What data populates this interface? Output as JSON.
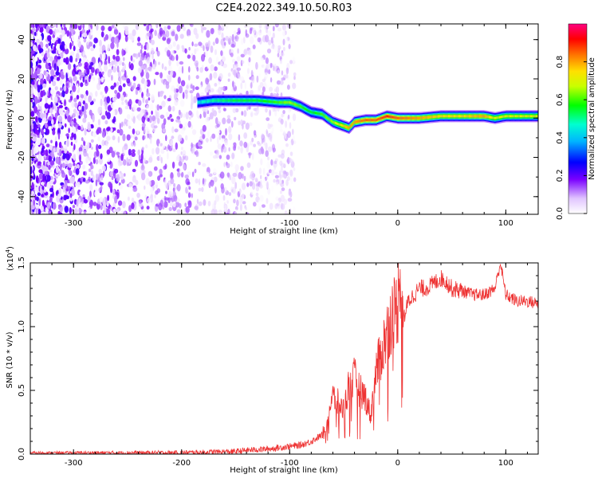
{
  "page_title": "C2E4.2022.349.10.50.R03",
  "chart_data": [
    {
      "type": "heatmap",
      "xlabel": "Height of straight line (km)",
      "ylabel": "Frequency (Hz)",
      "xlim": [
        -340,
        130
      ],
      "ylim": [
        -49,
        48
      ],
      "xticks": [
        -300,
        -200,
        -100,
        0,
        100
      ],
      "yticks": [
        -40,
        -20,
        0,
        20,
        40
      ],
      "xtick_labels": [
        "-300",
        "-200",
        "-100",
        "0",
        "100"
      ],
      "ytick_labels": [
        "-40",
        "-20",
        "0",
        "20",
        "40"
      ],
      "colorbar": {
        "label": "Normalized spectral amplitude",
        "range": [
          0.0,
          1.0
        ],
        "ticks": [
          0.0,
          0.2,
          0.4,
          0.6,
          0.8
        ],
        "tick_labels": [
          "0.0",
          "0.2",
          "0.4",
          "0.6",
          "0.8"
        ],
        "colors": [
          "#ffffff",
          "#e8c8ff",
          "#7a00ff",
          "#0000ff",
          "#00ffff",
          "#00ff00",
          "#ffff00",
          "#ff8800",
          "#ff0000",
          "#ff0080"
        ]
      },
      "noise_region_x": [
        -340,
        -95
      ],
      "ridge": {
        "x": [
          -185,
          -170,
          -150,
          -130,
          -110,
          -100,
          -90,
          -80,
          -70,
          -60,
          -50,
          -45,
          -40,
          -30,
          -20,
          -10,
          0,
          20,
          40,
          60,
          80,
          90,
          100,
          130
        ],
        "y": [
          8,
          9,
          9,
          9,
          8,
          8,
          6,
          3,
          2,
          -2,
          -4,
          -5,
          -2,
          -1,
          -1,
          1,
          0,
          0,
          1,
          1,
          1,
          0,
          1,
          1
        ],
        "amplitude": [
          0.45,
          0.5,
          0.55,
          0.55,
          0.6,
          0.65,
          0.6,
          0.55,
          0.6,
          0.65,
          0.75,
          0.8,
          0.8,
          0.85,
          0.85,
          0.9,
          0.85,
          0.8,
          0.75,
          0.75,
          0.8,
          0.7,
          0.7,
          0.7
        ]
      }
    },
    {
      "type": "line",
      "xlabel": "Height of straight line (km)",
      "ylabel": "SNR (10 * v/v)",
      "ylabel_multiplier": "(x10",
      "ylabel_multiplier_exp": "4",
      "ylabel_multiplier_close": ")",
      "xlim": [
        -340,
        130
      ],
      "ylim": [
        0,
        1.5
      ],
      "xticks": [
        -300,
        -200,
        -100,
        0,
        100
      ],
      "yticks": [
        0.0,
        0.5,
        1.0,
        1.5
      ],
      "xtick_labels": [
        "-300",
        "-200",
        "-100",
        "0",
        "100"
      ],
      "ytick_labels": [
        "0.0",
        "0.5",
        "1.0",
        "1.5"
      ],
      "series": [
        {
          "color": "#ee3333",
          "x": [
            -340,
            -300,
            -250,
            -200,
            -150,
            -140,
            -120,
            -100,
            -90,
            -80,
            -70,
            -65,
            -60,
            -55,
            -50,
            -45,
            -40,
            -35,
            -30,
            -25,
            -20,
            -15,
            -10,
            -5,
            0,
            2,
            5,
            10,
            15,
            20,
            25,
            30,
            35,
            40,
            45,
            50,
            60,
            70,
            80,
            90,
            95,
            100,
            110,
            120,
            130
          ],
          "y": [
            0.01,
            0.01,
            0.01,
            0.01,
            0.02,
            0.03,
            0.04,
            0.06,
            0.07,
            0.1,
            0.15,
            0.3,
            0.45,
            0.4,
            0.35,
            0.55,
            0.6,
            0.5,
            0.45,
            0.3,
            0.65,
            0.8,
            0.95,
            1.1,
            1.15,
            1.5,
            1.05,
            1.2,
            1.25,
            1.3,
            1.3,
            1.32,
            1.35,
            1.38,
            1.35,
            1.3,
            1.28,
            1.25,
            1.25,
            1.3,
            1.5,
            1.25,
            1.2,
            1.2,
            1.18
          ]
        }
      ]
    }
  ]
}
